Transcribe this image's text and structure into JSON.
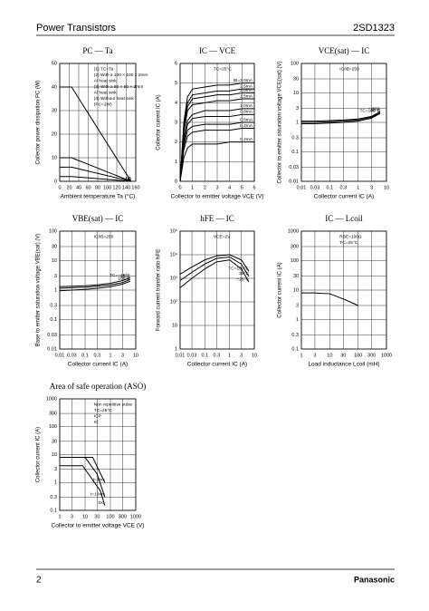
{
  "header": {
    "title": "Power Transistors",
    "part": "2SD1323"
  },
  "footer": {
    "page": "2",
    "brand": "Panasonic"
  },
  "chart_data": [
    {
      "type": "line",
      "title": "PC — Ta",
      "x_label": "Ambient temperature  Ta  (°C)",
      "y_label": "Collector power dissipation  PC  (W)",
      "xlim": [
        0,
        160
      ],
      "xticks": [
        0,
        20,
        40,
        60,
        80,
        100,
        120,
        140,
        160
      ],
      "ylim": [
        0,
        50
      ],
      "yticks": [
        0,
        10,
        20,
        30,
        40,
        50
      ],
      "grid": true,
      "annotations": [
        "(1) TC=Ta",
        "(2) With a 100 × 100 × 2mm",
        "Al heat sink",
        "(3) With a 50 × 50 × 2mm",
        "Al heat sink",
        "(4) Without heat sink",
        "(PC=2W)"
      ],
      "series": [
        {
          "name": "(1)",
          "color": "#000",
          "x": [
            0,
            25,
            150
          ],
          "values": [
            40,
            40,
            0
          ]
        },
        {
          "name": "(2)",
          "color": "#000",
          "x": [
            0,
            25,
            150
          ],
          "values": [
            10,
            10,
            0
          ]
        },
        {
          "name": "(3)",
          "color": "#000",
          "x": [
            0,
            25,
            150
          ],
          "values": [
            6,
            6,
            0
          ]
        },
        {
          "name": "(4)",
          "color": "#000",
          "x": [
            0,
            25,
            150
          ],
          "values": [
            2,
            2,
            0
          ]
        }
      ]
    },
    {
      "type": "line",
      "title": "IC — VCE",
      "x_label": "Collector to emitter voltage  VCE  (V)",
      "y_label": "Collector current  IC  (A)",
      "xlim": [
        0,
        6
      ],
      "xticks": [
        0,
        1,
        2,
        3,
        4,
        5,
        6
      ],
      "ylim": [
        0,
        6
      ],
      "yticks": [
        0,
        1,
        2,
        3,
        4,
        5,
        6
      ],
      "grid": true,
      "annotations": [
        "TC=25°C"
      ],
      "series": [
        {
          "name": "IB=3.0mA",
          "color": "#000",
          "x": [
            0,
            0.3,
            0.6,
            1,
            2,
            3,
            4,
            5,
            6
          ],
          "values": [
            0,
            3.0,
            4.3,
            4.7,
            4.8,
            4.9,
            4.9,
            5.0,
            5.0
          ]
        },
        {
          "name": "2.5mA",
          "color": "#000",
          "x": [
            0,
            0.3,
            0.6,
            1,
            2,
            3,
            4,
            5,
            6
          ],
          "values": [
            0,
            2.8,
            4.0,
            4.4,
            4.5,
            4.6,
            4.6,
            4.7,
            4.7
          ]
        },
        {
          "name": "2.0mA",
          "color": "#000",
          "x": [
            0,
            0.3,
            0.6,
            1,
            2,
            3,
            4,
            5,
            6
          ],
          "values": [
            0,
            2.7,
            3.8,
            4.2,
            4.3,
            4.4,
            4.4,
            4.5,
            4.5
          ]
        },
        {
          "name": "1.5mA",
          "color": "#000",
          "x": [
            0,
            0.3,
            0.6,
            1,
            2,
            3,
            4,
            5,
            6
          ],
          "values": [
            0,
            2.5,
            3.6,
            3.9,
            4.0,
            4.1,
            4.1,
            4.2,
            4.2
          ]
        },
        {
          "name": "1.0mA",
          "color": "#000",
          "x": [
            0,
            0.3,
            0.6,
            1,
            2,
            3,
            4,
            5,
            6
          ],
          "values": [
            0,
            2.2,
            3.1,
            3.4,
            3.6,
            3.6,
            3.6,
            3.7,
            3.7
          ]
        },
        {
          "name": "0.8mA",
          "color": "#000",
          "x": [
            0,
            0.3,
            0.6,
            1,
            2,
            3,
            4,
            5,
            6
          ],
          "values": [
            0,
            2.0,
            2.9,
            3.2,
            3.3,
            3.3,
            3.3,
            3.4,
            3.4
          ]
        },
        {
          "name": "0.6mA",
          "color": "#000",
          "x": [
            0,
            0.3,
            0.6,
            1,
            2,
            3,
            4,
            5,
            6
          ],
          "values": [
            0,
            1.8,
            2.6,
            2.8,
            2.9,
            2.9,
            2.9,
            3.0,
            3.0
          ]
        },
        {
          "name": "0.4mA",
          "color": "#000",
          "x": [
            0,
            0.3,
            0.6,
            1,
            2,
            3,
            4,
            5,
            6
          ],
          "values": [
            0,
            1.6,
            2.3,
            2.5,
            2.6,
            2.6,
            2.6,
            2.7,
            2.7
          ]
        },
        {
          "name": "0.2mA",
          "color": "#000",
          "x": [
            0,
            0.3,
            0.6,
            1,
            2,
            3,
            4,
            5,
            6
          ],
          "values": [
            0,
            1.2,
            1.7,
            1.9,
            1.9,
            1.9,
            2.0,
            2.0,
            2.0
          ]
        }
      ]
    },
    {
      "type": "line",
      "title": "VCE(sat) — IC",
      "x_label": "Collector current  IC  (A)",
      "y_label": "Collector to emitter saturation voltage  VCE(sat)  (V)",
      "xlog": true,
      "ylog": true,
      "xlim": [
        0.01,
        10
      ],
      "xticks": [
        0.01,
        0.03,
        0.1,
        0.3,
        1,
        3,
        10
      ],
      "ylim": [
        0.01,
        100
      ],
      "yticks": [
        0.01,
        0.03,
        0.1,
        0.3,
        1,
        3,
        10,
        30,
        100
      ],
      "grid": true,
      "annotations": [
        "IC/IB=250"
      ],
      "series": [
        {
          "name": "TC=100°C",
          "color": "#000",
          "x": [
            0.01,
            0.03,
            0.1,
            0.3,
            1,
            3,
            6
          ],
          "values": [
            0.9,
            0.9,
            0.95,
            1.0,
            1.1,
            1.4,
            2.0
          ]
        },
        {
          "name": "25°C",
          "color": "#000",
          "x": [
            0.01,
            0.03,
            0.1,
            0.3,
            1,
            3,
            6
          ],
          "values": [
            1.0,
            1.0,
            1.05,
            1.1,
            1.2,
            1.5,
            2.1
          ]
        },
        {
          "name": "−25°C",
          "color": "#000",
          "x": [
            0.01,
            0.03,
            0.1,
            0.3,
            1,
            3,
            6
          ],
          "values": [
            1.1,
            1.1,
            1.15,
            1.2,
            1.3,
            1.6,
            2.3
          ]
        }
      ]
    },
    {
      "type": "line",
      "title": "VBE(sat) — IC",
      "x_label": "Collector current  IC  (A)",
      "y_label": "Base to emitter saturation voltage  VBE(sat)  (V)",
      "xlog": true,
      "ylog": true,
      "xlim": [
        0.01,
        10
      ],
      "xticks": [
        0.01,
        0.03,
        0.1,
        0.3,
        1,
        3,
        10
      ],
      "ylim": [
        0.01,
        100
      ],
      "yticks": [
        0.01,
        0.03,
        0.1,
        0.3,
        1,
        3,
        10,
        30,
        100
      ],
      "grid": true,
      "annotations": [
        "IC/IB=250"
      ],
      "series": [
        {
          "name": "TC=−25°C",
          "color": "#000",
          "x": [
            0.01,
            0.03,
            0.1,
            0.3,
            1,
            3,
            6
          ],
          "values": [
            1.3,
            1.35,
            1.4,
            1.5,
            1.7,
            2.1,
            2.6
          ]
        },
        {
          "name": "25°C",
          "color": "#000",
          "x": [
            0.01,
            0.03,
            0.1,
            0.3,
            1,
            3,
            6
          ],
          "values": [
            1.15,
            1.2,
            1.25,
            1.35,
            1.5,
            1.8,
            2.3
          ]
        },
        {
          "name": "100°C",
          "color": "#000",
          "x": [
            0.01,
            0.03,
            0.1,
            0.3,
            1,
            3,
            6
          ],
          "values": [
            0.95,
            1.0,
            1.05,
            1.15,
            1.3,
            1.6,
            2.0
          ]
        }
      ]
    },
    {
      "type": "line",
      "title": "hFE — IC",
      "x_label": "Collector current  IC  (A)",
      "y_label": "Forward current transfer ratio  hFE",
      "xlog": true,
      "ylog": true,
      "xlim": [
        0.01,
        10
      ],
      "xticks": [
        0.01,
        0.03,
        0.1,
        0.3,
        1,
        3,
        10
      ],
      "ylim": [
        1,
        100000
      ],
      "yticks": [
        1,
        10,
        {
          "value": 100,
          "label": "10²"
        },
        {
          "value": 1000,
          "label": "10³"
        },
        {
          "value": 10000,
          "label": "10⁴"
        },
        {
          "value": 100000,
          "label": "10⁵"
        }
      ],
      "grid": true,
      "annotations": [
        "VCE=2V"
      ],
      "series": [
        {
          "name": "TC=100°C",
          "color": "#000",
          "x": [
            0.01,
            0.03,
            0.1,
            0.3,
            1,
            3,
            6
          ],
          "values": [
            1500,
            3000,
            6000,
            9000,
            10000,
            6000,
            2000
          ]
        },
        {
          "name": "25°C",
          "color": "#000",
          "x": [
            0.01,
            0.03,
            0.1,
            0.3,
            1,
            3,
            6
          ],
          "values": [
            800,
            1800,
            4000,
            7000,
            8000,
            4000,
            1200
          ]
        },
        {
          "name": "−25°C",
          "color": "#000",
          "x": [
            0.01,
            0.03,
            0.1,
            0.3,
            1,
            3,
            6
          ],
          "values": [
            400,
            1000,
            2500,
            5000,
            6000,
            2500,
            700
          ]
        }
      ]
    },
    {
      "type": "line",
      "title": "IC — Lcoil",
      "x_label": "Load inductance  Lcoil  (mH)",
      "y_label": "Collector current  IC  (A)",
      "xlog": true,
      "ylog": true,
      "xlim": [
        1,
        1000
      ],
      "xticks": [
        1,
        3,
        10,
        30,
        100,
        300,
        1000
      ],
      "ylim": [
        0.1,
        1000
      ],
      "yticks": [
        0.1,
        0.3,
        1,
        3,
        10,
        30,
        100,
        300,
        1000
      ],
      "grid": true,
      "annotations": [
        "RBE=100Ω",
        "TC=25°C"
      ],
      "series": [
        {
          "color": "#000",
          "x": [
            1,
            3,
            10,
            30,
            100
          ],
          "values": [
            8,
            8,
            7.5,
            5,
            3
          ]
        }
      ]
    },
    {
      "type": "line",
      "title": "Area of safe operation (ASO)",
      "x_label": "Collector to emitter voltage  VCE  (V)",
      "y_label": "Collector current  IC  (A)",
      "xlog": true,
      "ylog": true,
      "xlim": [
        1,
        1000
      ],
      "xticks": [
        1,
        3,
        10,
        30,
        100,
        300,
        1000
      ],
      "ylim": [
        0.1,
        1000
      ],
      "yticks": [
        0.1,
        0.3,
        1,
        3,
        10,
        30,
        100,
        300,
        1000
      ],
      "grid": true,
      "annotations": [
        "Non repetitive pulse",
        "TC=25°C",
        "ICP",
        "IC"
      ],
      "series": [
        {
          "name": "t=10ms",
          "color": "#000",
          "x": [
            1,
            10,
            30,
            60
          ],
          "values": [
            8,
            8,
            2,
            0.3
          ]
        },
        {
          "name": "t=1ms",
          "color": "#000",
          "x": [
            1,
            20,
            60
          ],
          "values": [
            8,
            8,
            1
          ]
        },
        {
          "name": "DC",
          "color": "#000",
          "x": [
            1,
            8,
            40,
            60
          ],
          "values": [
            4,
            4,
            0.5,
            0.15
          ]
        }
      ]
    }
  ]
}
